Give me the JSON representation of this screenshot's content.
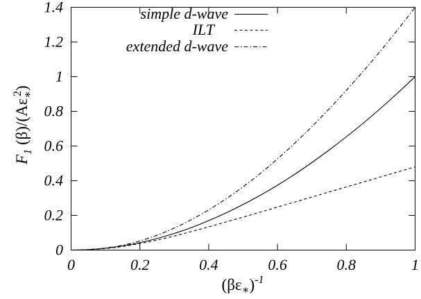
{
  "chart_data": {
    "type": "line",
    "xlabel": {
      "open": "(βε",
      "subscript": "∗",
      "close": ")",
      "superscript": "-1"
    },
    "ylabel": {
      "symbol": "F",
      "subscript": "1",
      "body": " (β)/(Aε",
      "body_subscript": "∗",
      "superscript": "2",
      "close": ")"
    },
    "xlim": [
      0,
      1
    ],
    "ylim": [
      0,
      1.4
    ],
    "xticks": [
      "0",
      "0.2",
      "0.4",
      "0.6",
      "0.8",
      "1"
    ],
    "yticks": [
      "0",
      "0.2",
      "0.4",
      "0.6",
      "0.8",
      "1",
      "1.2",
      "1.4"
    ],
    "grid": false,
    "legend_position": "top-left",
    "x": [
      0,
      0.05,
      0.1,
      0.15,
      0.2,
      0.25,
      0.3,
      0.35,
      0.4,
      0.45,
      0.5,
      0.55,
      0.6,
      0.65,
      0.7,
      0.75,
      0.8,
      0.85,
      0.9,
      0.95,
      1
    ],
    "series": [
      {
        "name": "simple d-wave",
        "line_style": "solid",
        "values": [
          0,
          0.003,
          0.011,
          0.024,
          0.043,
          0.067,
          0.096,
          0.13,
          0.17,
          0.214,
          0.263,
          0.316,
          0.374,
          0.437,
          0.505,
          0.577,
          0.653,
          0.733,
          0.818,
          0.907,
          1
        ]
      },
      {
        "name": "ILT",
        "line_style": "dashed",
        "values": [
          0,
          0.002,
          0.009,
          0.021,
          0.038,
          0.058,
          0.081,
          0.107,
          0.134,
          0.162,
          0.19,
          0.219,
          0.248,
          0.277,
          0.306,
          0.335,
          0.364,
          0.393,
          0.422,
          0.451,
          0.48
        ]
      },
      {
        "name": "extended d-wave",
        "line_style": "dash-dot",
        "values": [
          0,
          0.003,
          0.012,
          0.028,
          0.053,
          0.086,
          0.127,
          0.176,
          0.232,
          0.295,
          0.365,
          0.442,
          0.526,
          0.616,
          0.712,
          0.814,
          0.921,
          1.033,
          1.15,
          1.272,
          1.4
        ]
      }
    ],
    "colors": {
      "line": "#000000",
      "background": "#ffffff"
    }
  }
}
